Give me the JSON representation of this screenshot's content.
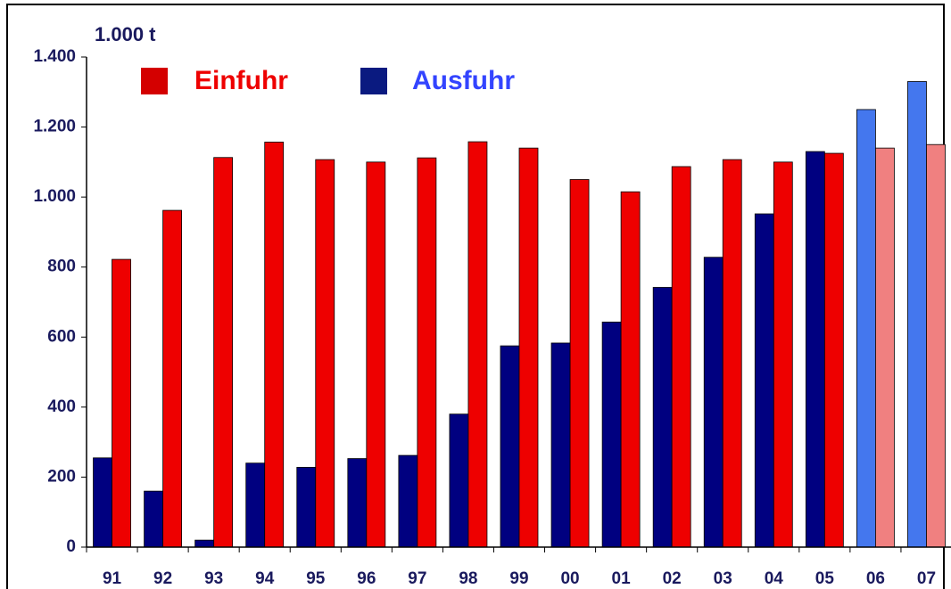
{
  "chart_data": {
    "type": "bar",
    "unit_label": "1.000 t",
    "categories": [
      "91",
      "92",
      "93",
      "94",
      "95",
      "96",
      "97",
      "98",
      "99",
      "00",
      "01",
      "02",
      "03",
      "04",
      "05",
      "06",
      "07"
    ],
    "series": [
      {
        "name": "Ausfuhr",
        "color": "#000080",
        "colors": [
          "#000080",
          "#000080",
          "#000080",
          "#000080",
          "#000080",
          "#000080",
          "#000080",
          "#000080",
          "#000080",
          "#000080",
          "#000080",
          "#000080",
          "#000080",
          "#000080",
          "#000080",
          "#4477ee",
          "#4477ee"
        ],
        "values": [
          255,
          160,
          20,
          240,
          228,
          253,
          262,
          380,
          575,
          583,
          643,
          742,
          828,
          952,
          1130,
          1250,
          1330
        ]
      },
      {
        "name": "Einfuhr",
        "color": "#ee0000",
        "colors": [
          "#ee0000",
          "#ee0000",
          "#ee0000",
          "#ee0000",
          "#ee0000",
          "#ee0000",
          "#ee0000",
          "#ee0000",
          "#ee0000",
          "#ee0000",
          "#ee0000",
          "#ee0000",
          "#ee0000",
          "#ee0000",
          "#ee0000",
          "#f08080",
          "#f08080"
        ],
        "values": [
          822,
          962,
          1113,
          1157,
          1107,
          1100,
          1112,
          1158,
          1140,
          1050,
          1015,
          1087,
          1107,
          1100,
          1125,
          1140,
          1150
        ]
      }
    ],
    "ylim": [
      0,
      1400
    ],
    "yticks": [
      0,
      200,
      400,
      600,
      800,
      {
        "value": 1000,
        "label": "1.000"
      },
      {
        "value": 1200,
        "label": "1.200"
      },
      {
        "value": 1400,
        "label": "1.400"
      }
    ],
    "grid": false
  }
}
